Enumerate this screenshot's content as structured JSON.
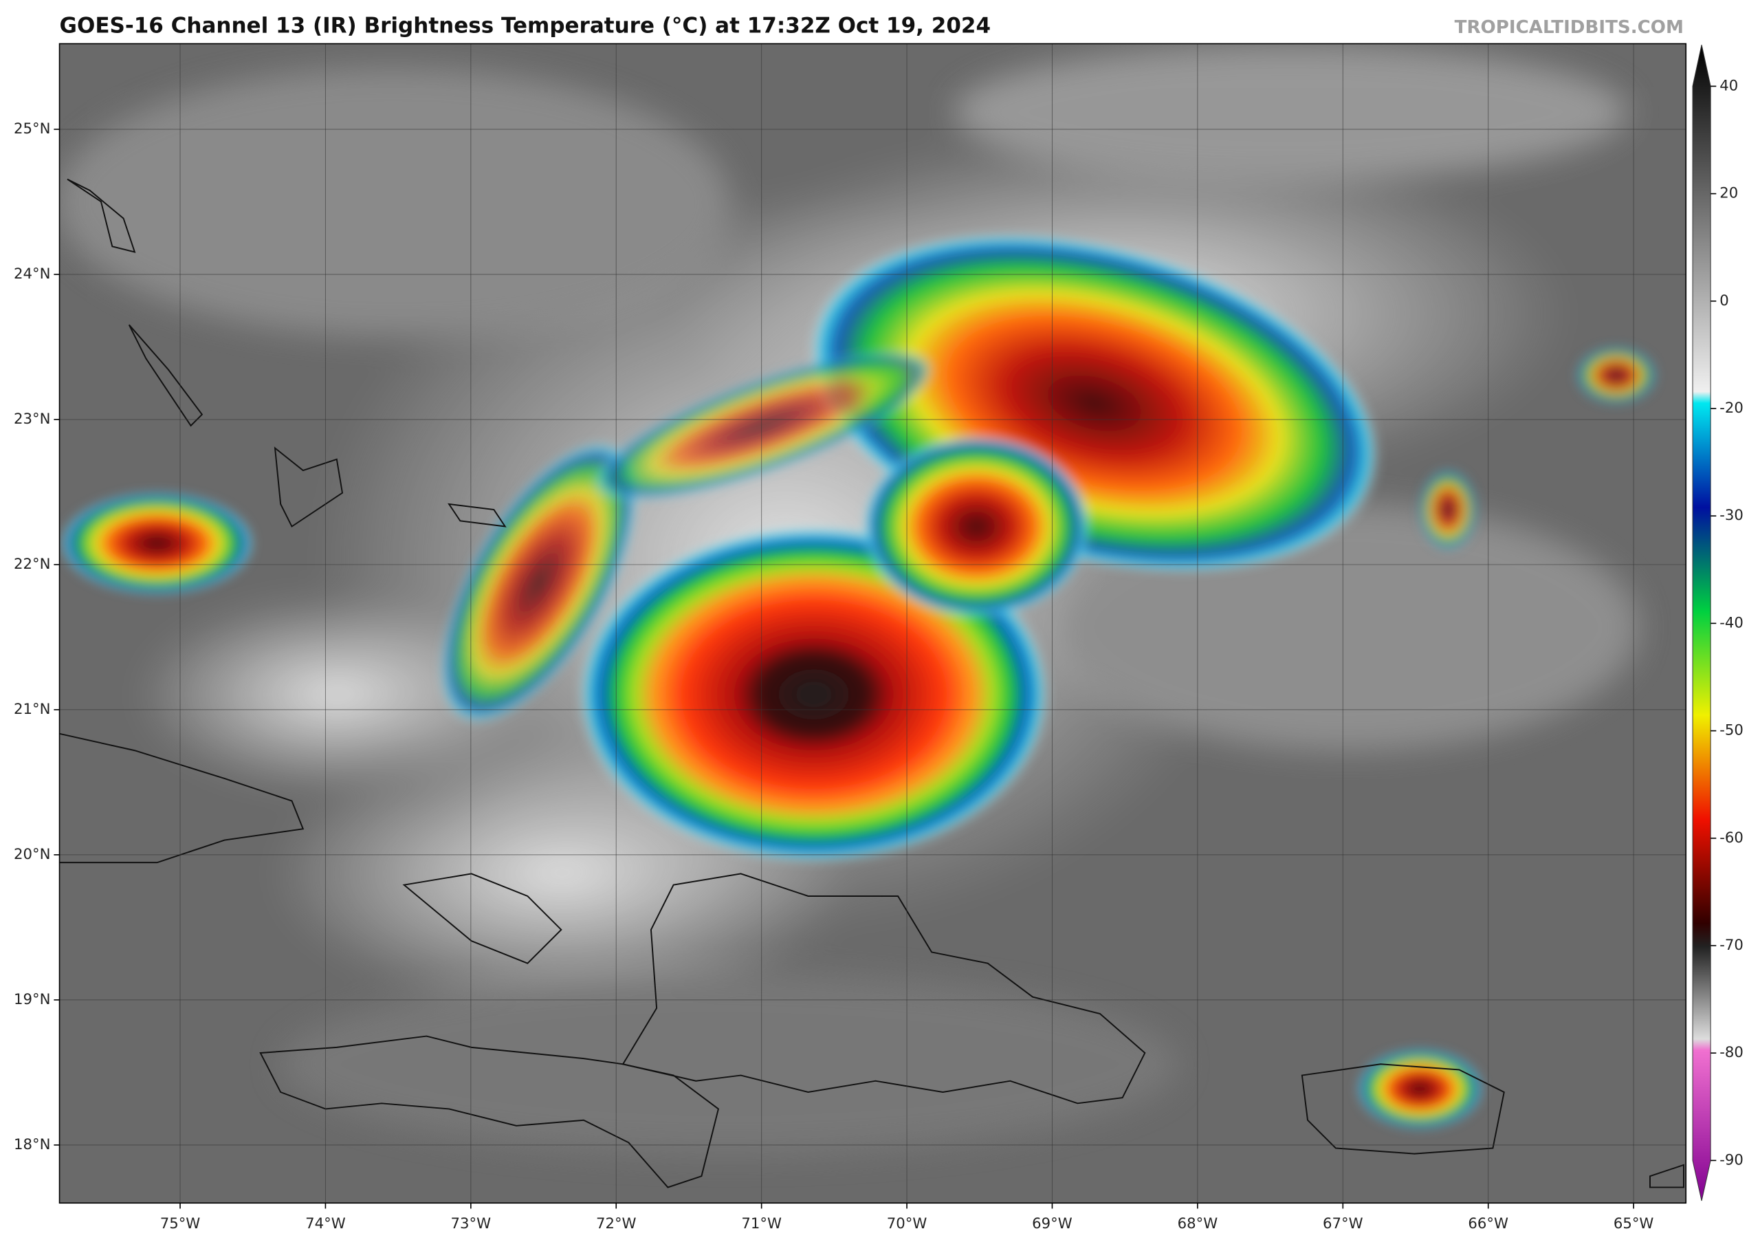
{
  "map": {
    "title": "GOES-16 Channel 13 (IR) Brightness Temperature (°C) at 17:32Z Oct 19, 2024",
    "watermark": "TROPICALTIDBITS.COM",
    "xlim": [
      -75.83,
      -64.64
    ],
    "ylim": [
      17.6,
      25.59
    ],
    "xticks": [
      {
        "value": -75,
        "label": "75°W"
      },
      {
        "value": -74,
        "label": "74°W"
      },
      {
        "value": -73,
        "label": "73°W"
      },
      {
        "value": -72,
        "label": "72°W"
      },
      {
        "value": -71,
        "label": "71°W"
      },
      {
        "value": -70,
        "label": "70°W"
      },
      {
        "value": -69,
        "label": "69°W"
      },
      {
        "value": -68,
        "label": "68°W"
      },
      {
        "value": -67,
        "label": "67°W"
      },
      {
        "value": -66,
        "label": "66°W"
      },
      {
        "value": -65,
        "label": "65°W"
      }
    ],
    "yticks": [
      {
        "value": 18,
        "label": "18°N"
      },
      {
        "value": 19,
        "label": "19°N"
      },
      {
        "value": 20,
        "label": "20°N"
      },
      {
        "value": 21,
        "label": "21°N"
      },
      {
        "value": 22,
        "label": "22°N"
      },
      {
        "value": 23,
        "label": "23°N"
      },
      {
        "value": 24,
        "label": "24°N"
      },
      {
        "value": 25,
        "label": "25°N"
      }
    ],
    "colorbar": {
      "ticks": [
        40,
        20,
        0,
        -20,
        -30,
        -40,
        -50,
        -60,
        -70,
        -80,
        -90
      ]
    }
  }
}
